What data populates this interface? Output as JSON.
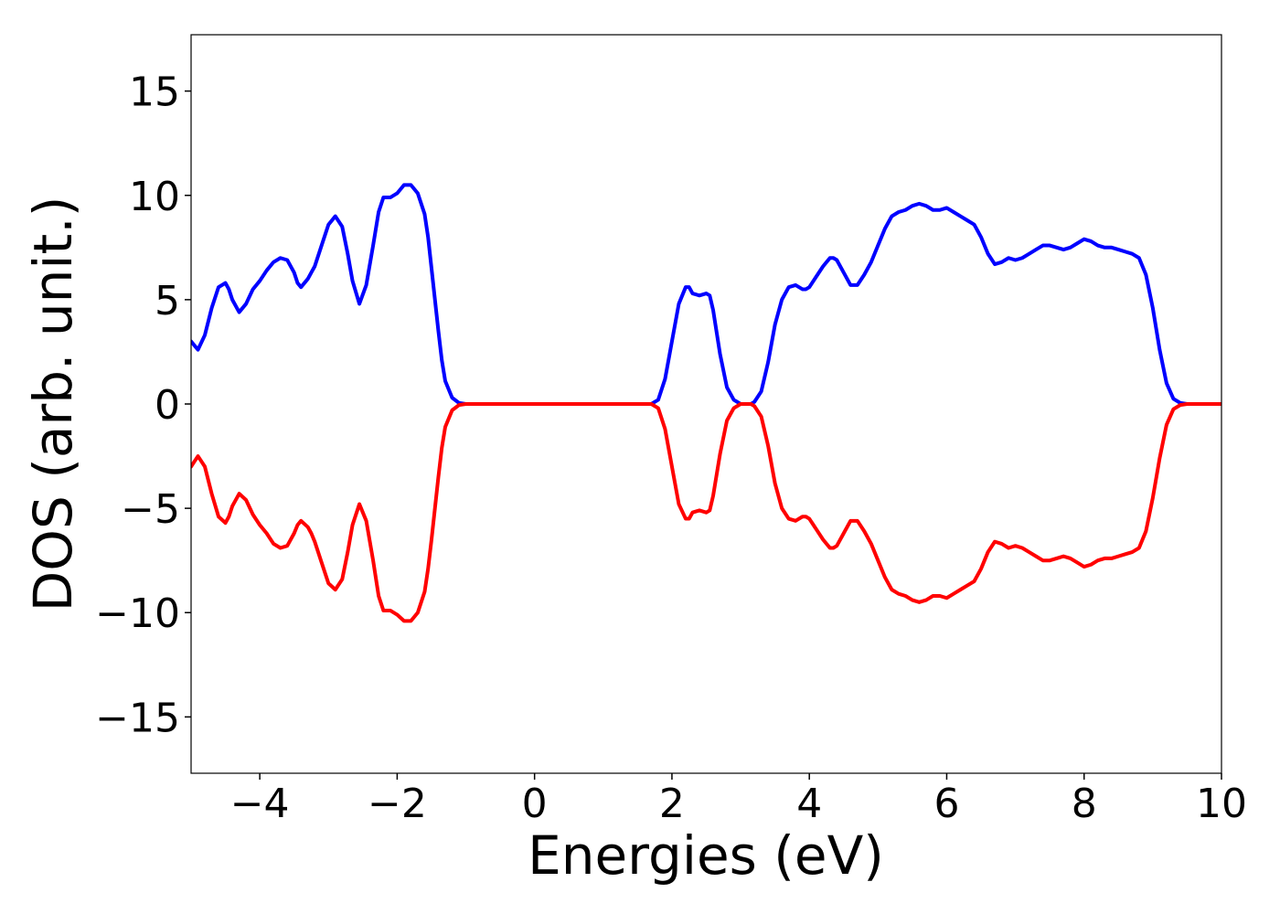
{
  "chart_data": {
    "type": "line",
    "title": "",
    "xlabel": "Energies (eV)",
    "ylabel": "DOS (arb. unit.)",
    "xlim": [
      -5,
      10
    ],
    "ylim": [
      -17.7,
      17.7
    ],
    "x_ticks": [
      -4,
      -2,
      0,
      2,
      4,
      6,
      8,
      10
    ],
    "y_ticks": [
      -15,
      -10,
      -5,
      0,
      5,
      10,
      15
    ],
    "x_tick_labels": [
      "−4",
      "−2",
      "0",
      "2",
      "4",
      "6",
      "8",
      "10"
    ],
    "y_tick_labels": [
      "−15",
      "−10",
      "−5",
      "0",
      "5",
      "10",
      "15"
    ],
    "grid": false,
    "legend": false,
    "series": [
      {
        "color": "#0000ff",
        "x": [
          -5.0,
          -4.9,
          -4.8,
          -4.7,
          -4.6,
          -4.5,
          -4.45,
          -4.4,
          -4.3,
          -4.2,
          -4.1,
          -4.0,
          -3.9,
          -3.8,
          -3.7,
          -3.6,
          -3.5,
          -3.45,
          -3.4,
          -3.3,
          -3.25,
          -3.2,
          -3.1,
          -3.0,
          -2.9,
          -2.8,
          -2.72,
          -2.65,
          -2.55,
          -2.45,
          -2.35,
          -2.27,
          -2.2,
          -2.1,
          -2.0,
          -1.9,
          -1.8,
          -1.7,
          -1.6,
          -1.55,
          -1.5,
          -1.45,
          -1.4,
          -1.35,
          -1.3,
          -1.2,
          -1.1,
          -1.0,
          -0.9,
          -0.8,
          -0.7,
          -0.6,
          -0.5,
          -0.3,
          0.0,
          0.5,
          1.0,
          1.5,
          1.7,
          1.8,
          1.9,
          2.0,
          2.1,
          2.2,
          2.25,
          2.3,
          2.4,
          2.5,
          2.55,
          2.6,
          2.7,
          2.8,
          2.9,
          3.0,
          3.1,
          3.15,
          3.2,
          3.3,
          3.4,
          3.5,
          3.6,
          3.7,
          3.8,
          3.9,
          3.95,
          4.0,
          4.1,
          4.2,
          4.3,
          4.35,
          4.4,
          4.5,
          4.6,
          4.7,
          4.8,
          4.9,
          5.0,
          5.1,
          5.2,
          5.3,
          5.4,
          5.5,
          5.6,
          5.7,
          5.8,
          5.9,
          6.0,
          6.1,
          6.2,
          6.3,
          6.4,
          6.5,
          6.6,
          6.7,
          6.8,
          6.9,
          7.0,
          7.1,
          7.2,
          7.3,
          7.4,
          7.5,
          7.6,
          7.7,
          7.8,
          7.9,
          8.0,
          8.1,
          8.2,
          8.3,
          8.4,
          8.5,
          8.6,
          8.7,
          8.8,
          8.9,
          9.0,
          9.1,
          9.2,
          9.3,
          9.4,
          9.5,
          9.6,
          9.8,
          10.0
        ],
        "y": [
          3.0,
          2.6,
          3.3,
          4.6,
          5.6,
          5.8,
          5.5,
          5.0,
          4.4,
          4.8,
          5.5,
          5.9,
          6.4,
          6.8,
          7.0,
          6.9,
          6.3,
          5.8,
          5.6,
          6.0,
          6.3,
          6.6,
          7.6,
          8.6,
          9.0,
          8.5,
          7.2,
          5.9,
          4.8,
          5.7,
          7.6,
          9.2,
          9.9,
          9.9,
          10.1,
          10.5,
          10.5,
          10.1,
          9.1,
          8.0,
          6.5,
          5.0,
          3.5,
          2.1,
          1.1,
          0.3,
          0.05,
          0.0,
          0.0,
          0.0,
          0.0,
          0.0,
          0.0,
          0.0,
          0.0,
          0.0,
          0.0,
          0.0,
          0.0,
          0.2,
          1.2,
          3.0,
          4.8,
          5.6,
          5.6,
          5.3,
          5.2,
          5.3,
          5.2,
          4.5,
          2.4,
          0.8,
          0.2,
          0.0,
          0.0,
          0.0,
          0.1,
          0.6,
          2.0,
          3.8,
          5.0,
          5.6,
          5.7,
          5.5,
          5.5,
          5.6,
          6.1,
          6.6,
          7.0,
          7.0,
          6.9,
          6.3,
          5.7,
          5.7,
          6.2,
          6.8,
          7.6,
          8.4,
          9.0,
          9.2,
          9.3,
          9.5,
          9.6,
          9.5,
          9.3,
          9.3,
          9.4,
          9.2,
          9.0,
          8.8,
          8.6,
          8.0,
          7.2,
          6.7,
          6.8,
          7.0,
          6.9,
          7.0,
          7.2,
          7.4,
          7.6,
          7.6,
          7.5,
          7.4,
          7.5,
          7.7,
          7.9,
          7.8,
          7.6,
          7.5,
          7.5,
          7.4,
          7.3,
          7.2,
          7.0,
          6.2,
          4.6,
          2.6,
          1.0,
          0.25,
          0.05,
          0.0,
          0.0,
          0.0,
          0.0
        ]
      },
      {
        "color": "#ff0000",
        "x": [
          -5.0,
          -4.9,
          -4.8,
          -4.7,
          -4.6,
          -4.5,
          -4.45,
          -4.4,
          -4.3,
          -4.2,
          -4.1,
          -4.0,
          -3.9,
          -3.8,
          -3.7,
          -3.6,
          -3.5,
          -3.45,
          -3.4,
          -3.3,
          -3.25,
          -3.2,
          -3.1,
          -3.0,
          -2.9,
          -2.8,
          -2.72,
          -2.65,
          -2.55,
          -2.45,
          -2.35,
          -2.27,
          -2.2,
          -2.1,
          -2.0,
          -1.9,
          -1.8,
          -1.7,
          -1.6,
          -1.55,
          -1.5,
          -1.45,
          -1.4,
          -1.35,
          -1.3,
          -1.2,
          -1.1,
          -1.0,
          -0.9,
          -0.8,
          -0.7,
          -0.6,
          -0.5,
          -0.3,
          0.0,
          0.5,
          1.0,
          1.5,
          1.7,
          1.8,
          1.9,
          2.0,
          2.1,
          2.2,
          2.25,
          2.3,
          2.4,
          2.5,
          2.55,
          2.6,
          2.7,
          2.8,
          2.9,
          3.0,
          3.1,
          3.15,
          3.2,
          3.3,
          3.4,
          3.5,
          3.6,
          3.7,
          3.8,
          3.9,
          3.95,
          4.0,
          4.1,
          4.2,
          4.3,
          4.35,
          4.4,
          4.5,
          4.6,
          4.7,
          4.8,
          4.9,
          5.0,
          5.1,
          5.2,
          5.3,
          5.4,
          5.5,
          5.6,
          5.7,
          5.8,
          5.9,
          6.0,
          6.1,
          6.2,
          6.3,
          6.4,
          6.5,
          6.6,
          6.7,
          6.8,
          6.9,
          7.0,
          7.1,
          7.2,
          7.3,
          7.4,
          7.5,
          7.6,
          7.7,
          7.8,
          7.9,
          8.0,
          8.1,
          8.2,
          8.3,
          8.4,
          8.5,
          8.6,
          8.7,
          8.8,
          8.9,
          9.0,
          9.1,
          9.2,
          9.3,
          9.4,
          9.5,
          9.6,
          9.8,
          10.0
        ],
        "y": [
          -3.0,
          -2.5,
          -3.0,
          -4.3,
          -5.4,
          -5.7,
          -5.4,
          -4.9,
          -4.3,
          -4.6,
          -5.3,
          -5.8,
          -6.2,
          -6.7,
          -6.9,
          -6.8,
          -6.2,
          -5.8,
          -5.6,
          -5.9,
          -6.2,
          -6.6,
          -7.6,
          -8.6,
          -8.9,
          -8.4,
          -7.1,
          -5.8,
          -4.8,
          -5.6,
          -7.5,
          -9.2,
          -9.9,
          -9.9,
          -10.1,
          -10.4,
          -10.4,
          -10.0,
          -9.0,
          -7.9,
          -6.5,
          -5.0,
          -3.5,
          -2.1,
          -1.1,
          -0.3,
          -0.05,
          0.0,
          0.0,
          0.0,
          0.0,
          0.0,
          0.0,
          0.0,
          0.0,
          0.0,
          0.0,
          0.0,
          0.0,
          -0.2,
          -1.2,
          -3.0,
          -4.8,
          -5.5,
          -5.5,
          -5.2,
          -5.1,
          -5.2,
          -5.1,
          -4.4,
          -2.4,
          -0.8,
          -0.2,
          0.0,
          0.0,
          0.0,
          -0.1,
          -0.6,
          -2.0,
          -3.8,
          -5.0,
          -5.5,
          -5.6,
          -5.4,
          -5.4,
          -5.5,
          -6.0,
          -6.5,
          -6.9,
          -6.9,
          -6.8,
          -6.2,
          -5.6,
          -5.6,
          -6.1,
          -6.7,
          -7.5,
          -8.3,
          -8.9,
          -9.1,
          -9.2,
          -9.4,
          -9.5,
          -9.4,
          -9.2,
          -9.2,
          -9.3,
          -9.1,
          -8.9,
          -8.7,
          -8.5,
          -7.9,
          -7.1,
          -6.6,
          -6.7,
          -6.9,
          -6.8,
          -6.9,
          -7.1,
          -7.3,
          -7.5,
          -7.5,
          -7.4,
          -7.3,
          -7.4,
          -7.6,
          -7.8,
          -7.7,
          -7.5,
          -7.4,
          -7.4,
          -7.3,
          -7.2,
          -7.1,
          -6.9,
          -6.1,
          -4.5,
          -2.6,
          -1.0,
          -0.25,
          -0.05,
          0.0,
          0.0,
          0.0,
          0.0
        ]
      }
    ]
  }
}
